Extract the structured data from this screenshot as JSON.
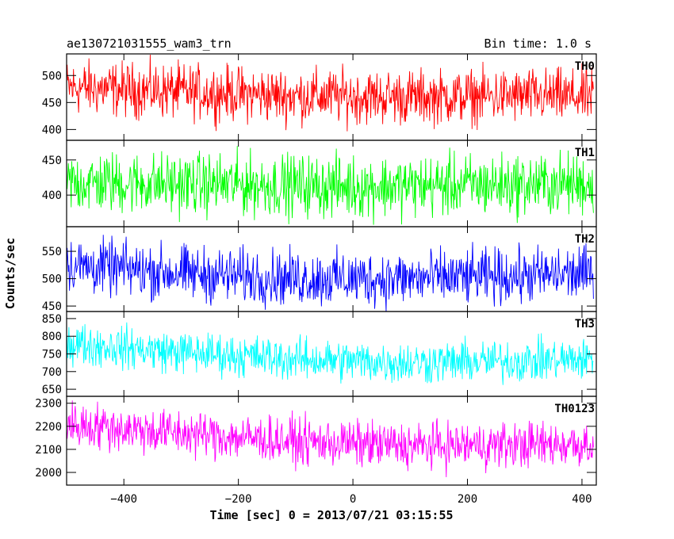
{
  "chart_data": {
    "type": "line",
    "title_left": "ae130721031555_wam3_trn",
    "title_right": "Bin time: 1.0 s",
    "xlabel": "Time [sec] 0 = 2013/07/21 03:15:55",
    "ylabel": "Counts/sec",
    "xlim": [
      -500,
      425
    ],
    "x_ticks": [
      -400,
      -200,
      0,
      200,
      400
    ],
    "x_tick_labels": [
      "−400",
      "−200",
      "0",
      "200",
      "400"
    ],
    "grid": false,
    "panels": [
      {
        "name": "TH0",
        "color": "#ff0000",
        "ylim": [
          380,
          540
        ],
        "y_ticks": [
          400,
          450,
          500
        ],
        "y_tick_labels": [
          "400",
          "450",
          "500"
        ],
        "series": {
          "x_start": -500,
          "x_end": 420,
          "bin": 1.0,
          "baseline": [
            [
              -500,
              478
            ],
            [
              -300,
              470
            ],
            [
              -100,
              462
            ],
            [
              100,
              460
            ],
            [
              300,
              462
            ],
            [
              420,
              460
            ]
          ],
          "noise_amplitude": 55
        }
      },
      {
        "name": "TH1",
        "color": "#00ff00",
        "ylim": [
          355,
          478
        ],
        "y_ticks": [
          400,
          450
        ],
        "y_tick_labels": [
          "400",
          "450"
        ],
        "series": {
          "x_start": -500,
          "x_end": 420,
          "bin": 1.0,
          "baseline": [
            [
              -500,
              418
            ],
            [
              -200,
              415
            ],
            [
              0,
              412
            ],
            [
              200,
              414
            ],
            [
              420,
              416
            ]
          ],
          "noise_amplitude": 48
        }
      },
      {
        "name": "TH2",
        "color": "#0000ff",
        "ylim": [
          440,
          595
        ],
        "y_ticks": [
          450,
          500,
          550
        ],
        "y_tick_labels": [
          "450",
          "500",
          "550"
        ],
        "series": {
          "x_start": -500,
          "x_end": 420,
          "bin": 1.0,
          "baseline": [
            [
              -500,
              525
            ],
            [
              -300,
              510
            ],
            [
              -100,
              500
            ],
            [
              100,
              500
            ],
            [
              300,
              505
            ],
            [
              420,
              510
            ]
          ],
          "noise_amplitude": 55
        }
      },
      {
        "name": "TH3",
        "color": "#00ffff",
        "ylim": [
          630,
          870
        ],
        "y_ticks": [
          650,
          700,
          750,
          800,
          850
        ],
        "y_tick_labels": [
          "650",
          "700",
          "750",
          "800",
          "850"
        ],
        "series": {
          "x_start": -500,
          "x_end": 420,
          "bin": 1.0,
          "baseline": [
            [
              -500,
              780
            ],
            [
              -300,
              755
            ],
            [
              -100,
              735
            ],
            [
              100,
              725
            ],
            [
              300,
              730
            ],
            [
              420,
              735
            ]
          ],
          "noise_amplitude": 65
        }
      },
      {
        "name": "TH0123",
        "color": "#ff00ff",
        "ylim": [
          1945,
          2330
        ],
        "y_ticks": [
          2000,
          2100,
          2200,
          2300
        ],
        "y_tick_labels": [
          "2000",
          "2100",
          "2200",
          "2300"
        ],
        "series": {
          "x_start": -500,
          "x_end": 420,
          "bin": 1.0,
          "baseline": [
            [
              -500,
              2210
            ],
            [
              -300,
              2170
            ],
            [
              -100,
              2135
            ],
            [
              100,
              2115
            ],
            [
              300,
              2120
            ],
            [
              420,
              2125
            ]
          ],
          "noise_amplitude": 110
        }
      }
    ]
  }
}
